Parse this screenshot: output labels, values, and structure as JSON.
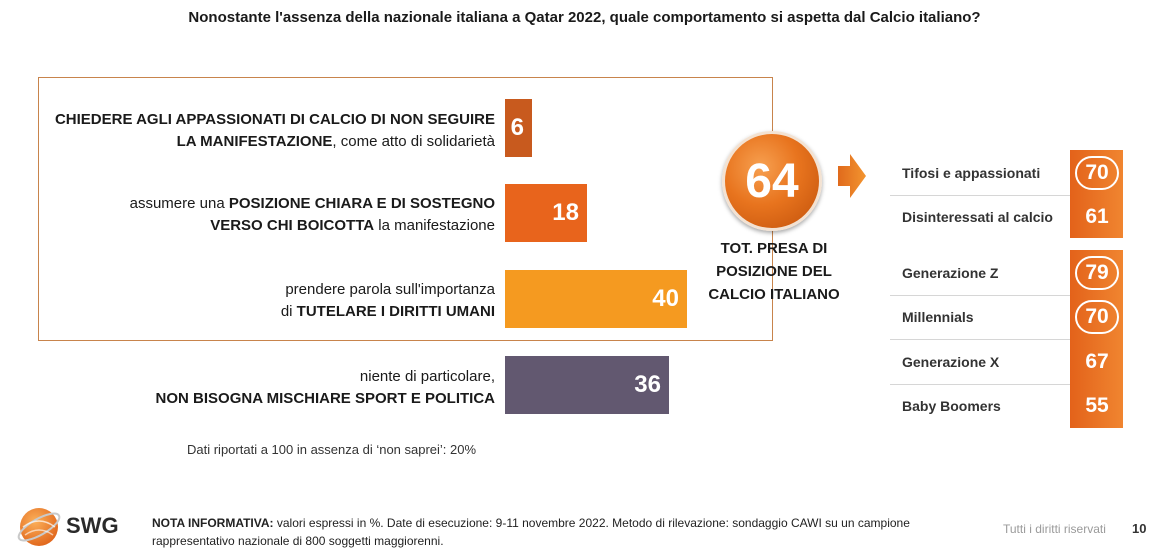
{
  "title": "Nonostante l'assenza della nazionale italiana a Qatar 2022, quale comportamento si aspetta dal Calcio italiano?",
  "chart_data": [
    {
      "type": "bar",
      "orientation": "horizontal",
      "categories": [
        "CHIEDERE AGLI APPASSIONATI DI CALCIO DI NON SEGUIRE LA MANIFESTAZIONE, come atto di solidarietà",
        "assumere una POSIZIONE CHIARA E DI SOSTEGNO VERSO CHI BOICOTTA la manifestazione",
        "prendere parola sull'importanza di TUTELARE I DIRITTI UMANI",
        "niente di particolare, NON BISOGNA MISCHIARE SPORT E POLITICA"
      ],
      "values": [
        6,
        18,
        40,
        36
      ],
      "colors": [
        "#c85a1e",
        "#e8641c",
        "#f59a20",
        "#625870"
      ],
      "label_lines": [
        [
          {
            "t": "CHIEDERE AGLI APPASSIONATI DI CALCIO DI NON SEGUIRE",
            "b": true
          }
        ],
        [
          {
            "t": "LA MANIFESTAZIONE",
            "b": true
          },
          {
            "t": ", come atto di solidarietà",
            "b": false
          }
        ],
        [
          {
            "t": "assumere una ",
            "b": false
          },
          {
            "t": "POSIZIONE CHIARA E DI SOSTEGNO",
            "b": true
          }
        ],
        [
          {
            "t": "VERSO CHI BOICOTTA",
            "b": true
          },
          {
            "t": " la manifestazione",
            "b": false
          }
        ],
        [
          {
            "t": "prendere parola sull'importanza",
            "b": false
          }
        ],
        [
          {
            "t": "di ",
            "b": false
          },
          {
            "t": "TUTELARE I DIRITTI UMANI",
            "b": true
          }
        ],
        [
          {
            "t": "niente di particolare,",
            "b": false
          }
        ],
        [
          {
            "t": "NON BISOGNA MISCHIARE SPORT E POLITICA",
            "b": true
          }
        ]
      ],
      "xlim": [
        0,
        100
      ]
    },
    {
      "type": "table",
      "total_value": 64,
      "total_label": [
        "TOT. PRESA DI",
        "POSIZIONE DEL",
        "CALCIO ITALIANO"
      ],
      "rows": [
        {
          "label": "Tifosi e appassionati",
          "value": 70,
          "circled": true
        },
        {
          "label": "Disinteressati al calcio",
          "value": 61,
          "circled": false
        },
        {
          "label": "Generazione Z",
          "value": 79,
          "circled": true
        },
        {
          "label": "Millennials",
          "value": 70,
          "circled": true
        },
        {
          "label": "Generazione X",
          "value": 67,
          "circled": false
        },
        {
          "label": "Baby Boomers",
          "value": 55,
          "circled": false
        }
      ]
    }
  ],
  "footnote": "Dati riportati a 100 in assenza di ‘non saprei’: 20%",
  "note_label": "NOTA INFORMATIVA:",
  "note_text": " valori espressi in %. Date di esecuzione: 9-11 novembre 2022. Metodo di rilevazione: sondaggio CAWI su un campione rappresentativo nazionale di 800 soggetti maggiorenni.",
  "logo_text": "SWG",
  "rights": "Tutti i diritti riservati",
  "page_number": "10"
}
